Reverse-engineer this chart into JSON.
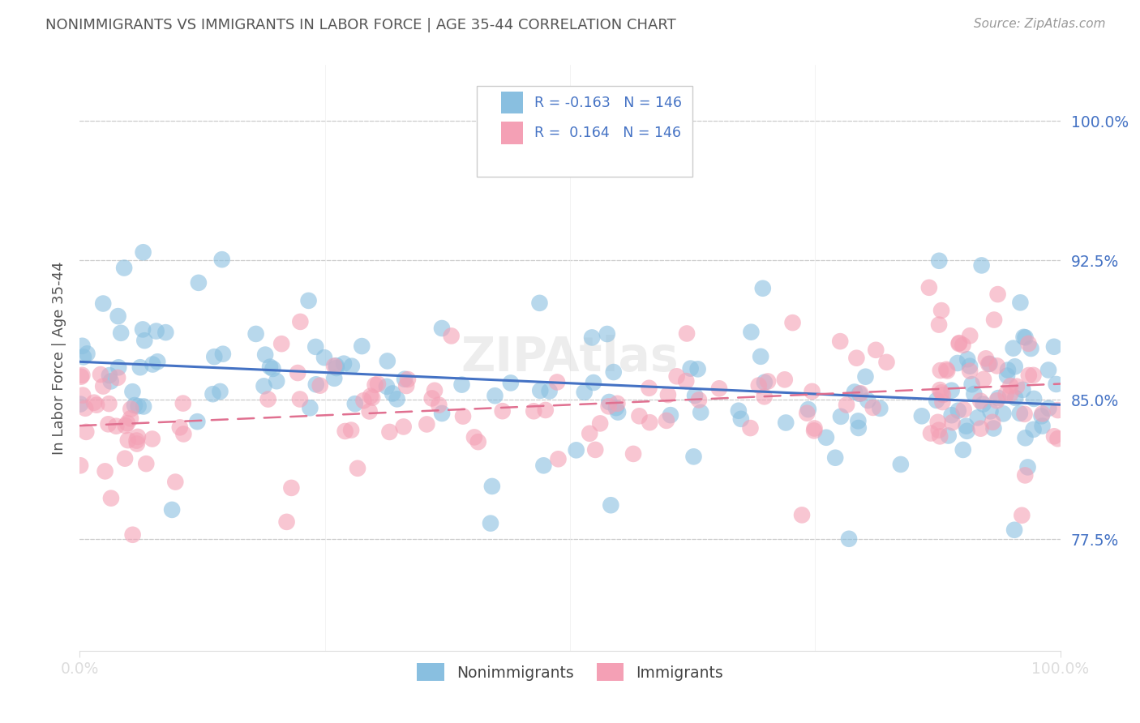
{
  "title": "NONIMMIGRANTS VS IMMIGRANTS IN LABOR FORCE | AGE 35-44 CORRELATION CHART",
  "source": "Source: ZipAtlas.com",
  "ylabel": "In Labor Force | Age 35-44",
  "r_nonimmigrant": -0.163,
  "r_immigrant": 0.164,
  "n_nonimmigrant": 146,
  "n_immigrant": 146,
  "xlim": [
    0.0,
    1.0
  ],
  "ylim": [
    0.715,
    1.03
  ],
  "yticks": [
    0.775,
    0.85,
    0.925,
    1.0
  ],
  "ytick_labels": [
    "77.5%",
    "85.0%",
    "92.5%",
    "100.0%"
  ],
  "xtick_labels": [
    "0.0%",
    "100.0%"
  ],
  "xticks": [
    0.0,
    1.0
  ],
  "color_nonimmigrant": "#89bfe0",
  "color_immigrant": "#f4a0b5",
  "line_color_nonimmigrant": "#4472c4",
  "line_color_immigrant": "#e07090",
  "dot_alpha": 0.6,
  "dot_size": 220,
  "background_color": "#ffffff",
  "grid_color": "#cccccc",
  "axis_color": "#4472c4",
  "title_color": "#555555",
  "legend_r_color": "#4472c4",
  "watermark": "ZIPAtlas",
  "watermark_color": "#cccccc"
}
